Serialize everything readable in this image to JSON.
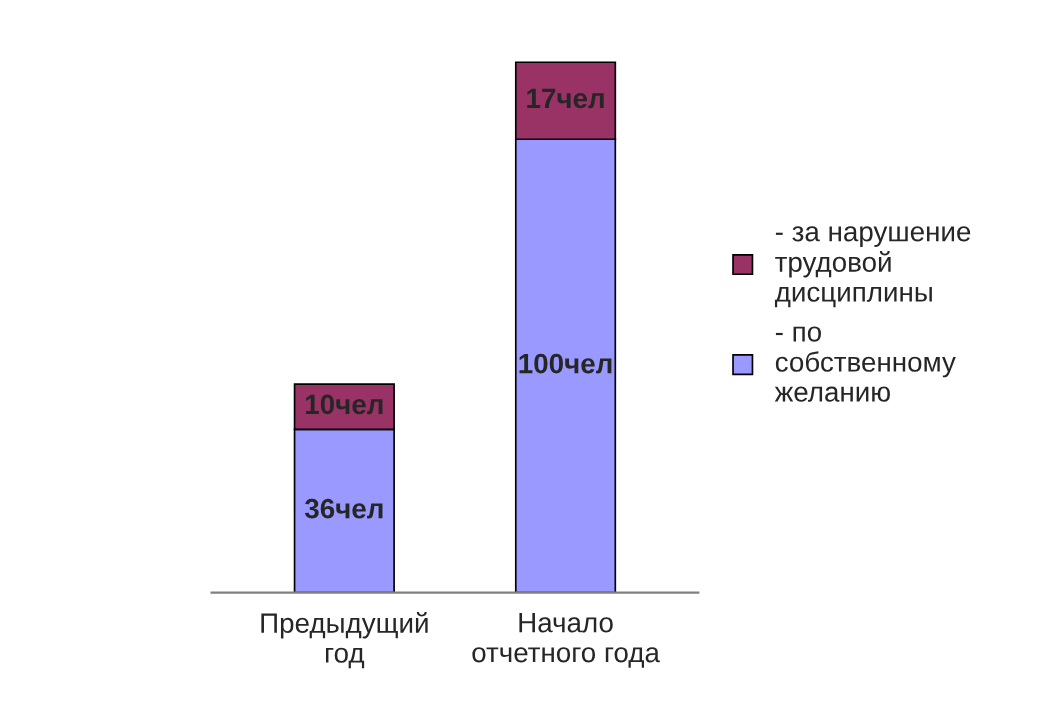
{
  "chart_data": {
    "type": "bar",
    "stacked": true,
    "categories": [
      "Предыдущий\nгод",
      "Начало\nотчетного года"
    ],
    "series": [
      {
        "name": "- по\nсобственному\nжеланию",
        "color": "#9999ff",
        "values": [
          36,
          100
        ],
        "value_labels": [
          "36чел",
          "100чел"
        ]
      },
      {
        "name": "- за нарушение\nтрудовой\nдисциплины",
        "color": "#993366",
        "values": [
          10,
          17
        ],
        "value_labels": [
          "10чел",
          "17чел"
        ]
      }
    ],
    "legend": "right",
    "grid": false,
    "tick_labels": "x"
  }
}
